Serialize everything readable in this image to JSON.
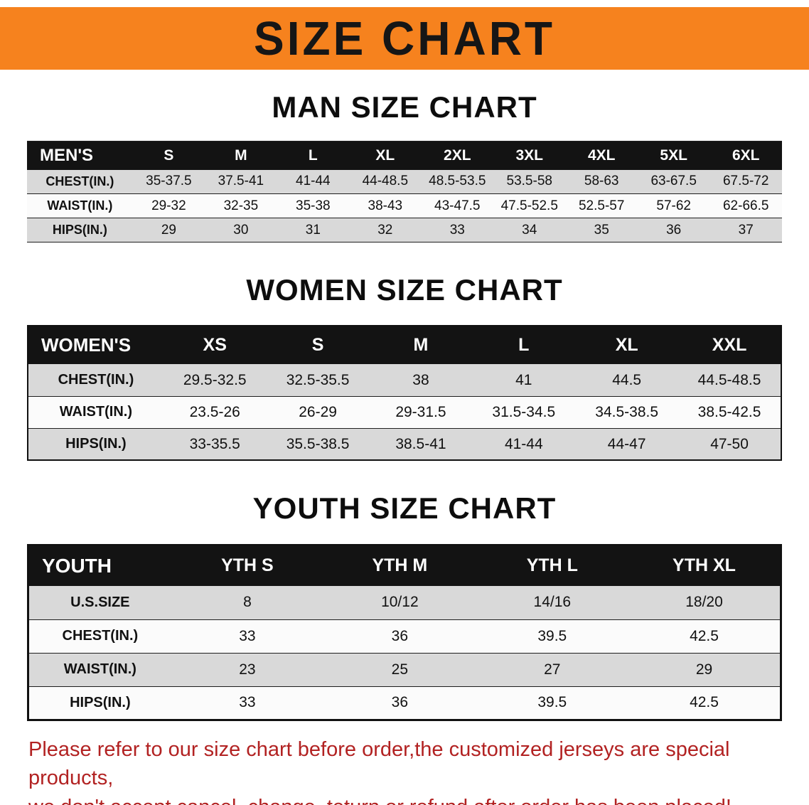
{
  "theme": {
    "banner_bg": "#f6821e",
    "disclaimer_color": "#b22222",
    "header_row_bg": "#131313",
    "shaded_row_bg": "#d9d9d9"
  },
  "banner": {
    "title": "SIZE CHART"
  },
  "sections": [
    {
      "heading": "MAN SIZE CHART",
      "table": {
        "header_label": "MEN'S",
        "columns": [
          "S",
          "M",
          "L",
          "XL",
          "2XL",
          "3XL",
          "4XL",
          "5XL",
          "6XL"
        ],
        "rows": [
          {
            "label": "CHEST(IN.)",
            "values": [
              "35-37.5",
              "37.5-41",
              "41-44",
              "44-48.5",
              "48.5-53.5",
              "53.5-58",
              "58-63",
              "63-67.5",
              "67.5-72"
            ]
          },
          {
            "label": "WAIST(IN.)",
            "values": [
              "29-32",
              "32-35",
              "35-38",
              "38-43",
              "43-47.5",
              "47.5-52.5",
              "52.5-57",
              "57-62",
              "62-66.5"
            ]
          },
          {
            "label": "HIPS(IN.)",
            "values": [
              "29",
              "30",
              "31",
              "32",
              "33",
              "34",
              "35",
              "36",
              "37"
            ]
          }
        ]
      }
    },
    {
      "heading": "WOMEN SIZE CHART",
      "table": {
        "header_label": "WOMEN'S",
        "columns": [
          "XS",
          "S",
          "M",
          "L",
          "XL",
          "XXL"
        ],
        "rows": [
          {
            "label": "CHEST(IN.)",
            "values": [
              "29.5-32.5",
              "32.5-35.5",
              "38",
              "41",
              "44.5",
              "44.5-48.5"
            ]
          },
          {
            "label": "WAIST(IN.)",
            "values": [
              "23.5-26",
              "26-29",
              "29-31.5",
              "31.5-34.5",
              "34.5-38.5",
              "38.5-42.5"
            ]
          },
          {
            "label": "HIPS(IN.)",
            "values": [
              "33-35.5",
              "35.5-38.5",
              "38.5-41",
              "41-44",
              "44-47",
              "47-50"
            ]
          }
        ]
      }
    },
    {
      "heading": "YOUTH SIZE CHART",
      "table": {
        "header_label": "YOUTH",
        "columns": [
          "YTH S",
          "YTH M",
          "YTH L",
          "YTH XL"
        ],
        "rows": [
          {
            "label": "U.S.SIZE",
            "values": [
              "8",
              "10/12",
              "14/16",
              "18/20"
            ]
          },
          {
            "label": "CHEST(IN.)",
            "values": [
              "33",
              "36",
              "39.5",
              "42.5"
            ]
          },
          {
            "label": "WAIST(IN.)",
            "values": [
              "23",
              "25",
              "27",
              "29"
            ]
          },
          {
            "label": "HIPS(IN.)",
            "values": [
              "33",
              "36",
              "39.5",
              "42.5"
            ]
          }
        ]
      }
    }
  ],
  "disclaimer": {
    "line1": "Please refer to our size chart before order,the customized jerseys are special products,",
    "line2": "we don't accept cancel, change, teturn or refund after order has been placed!"
  }
}
